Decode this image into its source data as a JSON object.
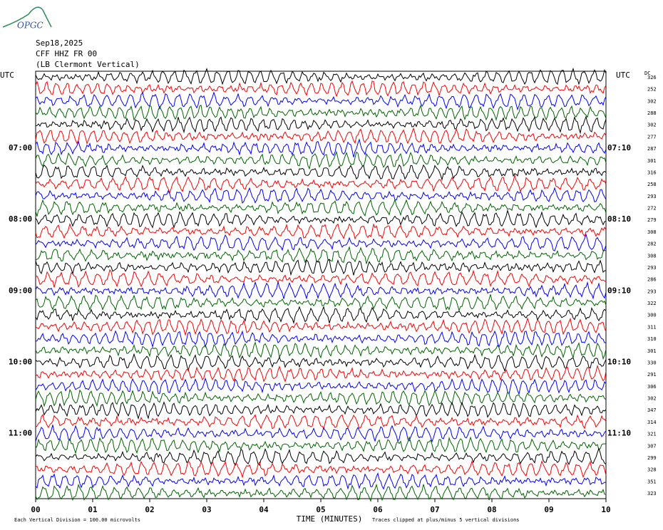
{
  "chart_data": {
    "type": "helicorder",
    "logo": "OPGC",
    "title": "Sep18,2025",
    "subtitle": "CFF HHZ FR 00",
    "station": "(LB  Clermont Vertical)",
    "left_axis_label": "UTC",
    "right_axis_label": "UTC",
    "dc_label": "DC",
    "xlabel": "TIME (MINUTES)",
    "scale_note": "Each Vertical Division =  100.00 microvolts",
    "clip_note": "Traces clipped at plus/minus 5 vertical divisions",
    "xlim": [
      0,
      10
    ],
    "xticks": [
      {
        "value": 0,
        "label": "00"
      },
      {
        "value": 1,
        "label": "01"
      },
      {
        "value": 2,
        "label": "02"
      },
      {
        "value": 3,
        "label": "03"
      },
      {
        "value": 4,
        "label": "04"
      },
      {
        "value": 5,
        "label": "05"
      },
      {
        "value": 6,
        "label": "06"
      },
      {
        "value": 7,
        "label": "07"
      },
      {
        "value": 8,
        "label": "08"
      },
      {
        "value": 9,
        "label": "09"
      },
      {
        "value": 10,
        "label": "10"
      }
    ],
    "trace_colors": [
      "#000000",
      "#ff0000",
      "#0000ff",
      "#006400"
    ],
    "left_labels": [
      null,
      null,
      null,
      null,
      null,
      null,
      "07:00",
      null,
      null,
      null,
      null,
      null,
      "08:00",
      null,
      null,
      null,
      null,
      null,
      "09:00",
      null,
      null,
      null,
      null,
      null,
      "10:00",
      null,
      null,
      null,
      null,
      null,
      "11:00",
      null,
      null,
      null,
      null,
      null
    ],
    "right_labels": [
      null,
      null,
      null,
      null,
      null,
      null,
      "07:10",
      null,
      null,
      null,
      null,
      null,
      "08:10",
      null,
      null,
      null,
      null,
      null,
      "09:10",
      null,
      null,
      null,
      null,
      null,
      "10:10",
      null,
      null,
      null,
      null,
      null,
      "11:10",
      null,
      null,
      null,
      null,
      null
    ],
    "dc_values": [
      326,
      252,
      302,
      288,
      302,
      277,
      287,
      301,
      316,
      258,
      293,
      272,
      279,
      308,
      282,
      308,
      293,
      286,
      293,
      322,
      300,
      311,
      310,
      301,
      330,
      291,
      306,
      302,
      347,
      314,
      321,
      307,
      299,
      328,
      351,
      323
    ]
  }
}
